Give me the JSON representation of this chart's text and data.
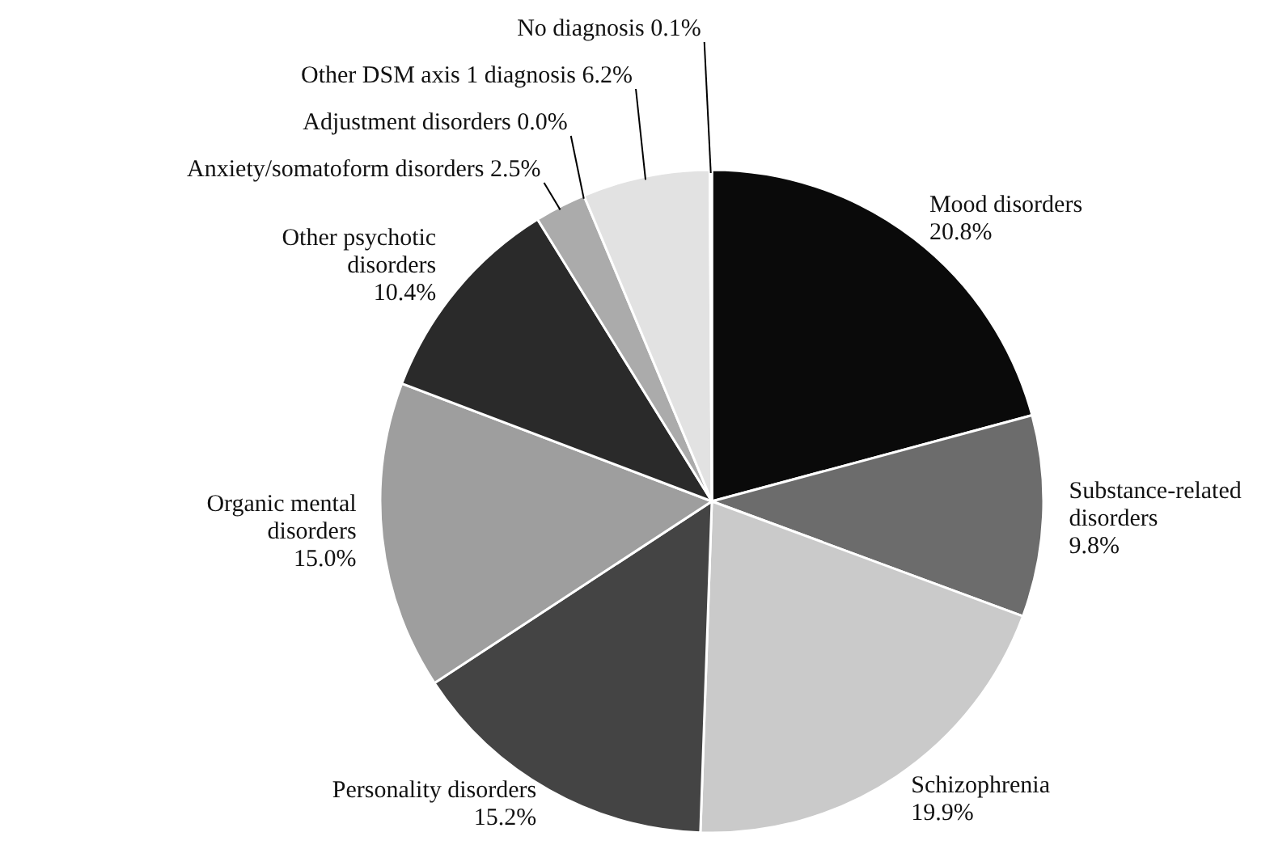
{
  "chart_data": {
    "type": "pie",
    "categories": [
      "Mood disorders",
      "Substance-related disorders",
      "Schizophrenia",
      "Personality disorders",
      "Organic mental disorders",
      "Other psychotic disorders",
      "Anxiety/somatoform disorders",
      "Adjustment disorders",
      "Other DSM axis 1 diagnosis",
      "No diagnosis"
    ],
    "values": [
      20.8,
      9.8,
      19.9,
      15.2,
      15.0,
      10.4,
      2.5,
      0.0,
      6.2,
      0.1
    ],
    "value_labels": [
      "20.8%",
      "9.8%",
      "19.9%",
      "15.2%",
      "15.0%",
      "10.4%",
      "2.5%",
      "0.0%",
      "6.2%",
      "0.1%"
    ],
    "colors": [
      "#0a0a0a",
      "#6c6c6c",
      "#cacaca",
      "#444444",
      "#9e9e9e",
      "#2a2a2a",
      "#ababab",
      "#888888",
      "#e2e2e2",
      "#f4f4f4"
    ],
    "legend": false
  }
}
